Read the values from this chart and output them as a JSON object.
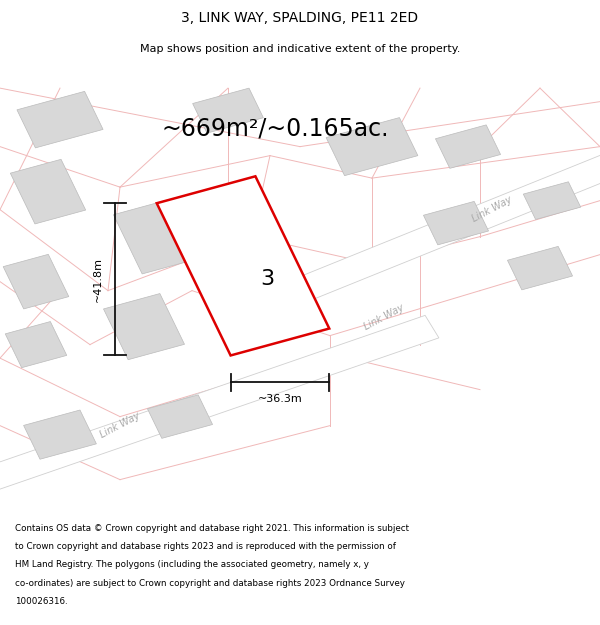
{
  "title": "3, LINK WAY, SPALDING, PE11 2ED",
  "subtitle": "Map shows position and indicative extent of the property.",
  "area_text": "~669m²/~0.165ac.",
  "plot_number": "3",
  "dim_width": "~36.3m",
  "dim_height": "~41.8m",
  "map_bg": "#f5f5f5",
  "page_bg": "#ffffff",
  "road_color": "#ffffff",
  "road_border_color": "#d0d0d0",
  "building_fill": "#d8d8d8",
  "building_edge": "#bbbbbb",
  "plot_fill": "#ffffff",
  "plot_edge": "#dd0000",
  "plot_edge_width": 1.8,
  "dim_line_color": "#111111",
  "faint_line_color": "#f0b8b8",
  "road_label_color": "#aaaaaa",
  "footer_lines": [
    "Contains OS data © Crown copyright and database right 2021. This information is subject",
    "to Crown copyright and database rights 2023 and is reproduced with the permission of",
    "HM Land Registry. The polygons (including the associated geometry, namely x, y",
    "co-ordinates) are subject to Crown copyright and database rights 2023 Ordnance Survey",
    "100026316."
  ]
}
